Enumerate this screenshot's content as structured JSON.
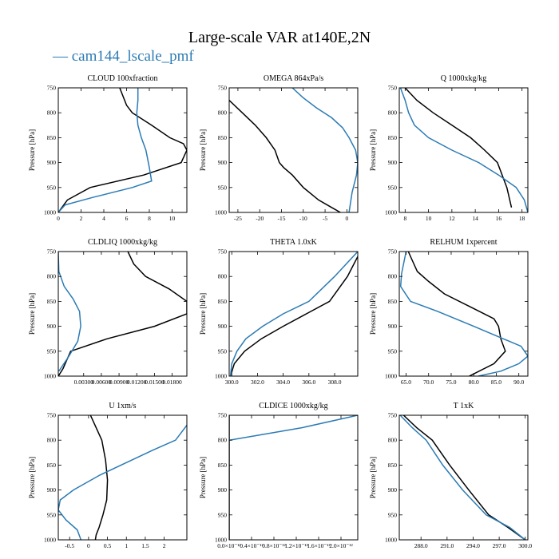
{
  "figure": {
    "title": "Large-scale VAR at140E,2N",
    "legend_label": "— cam144_lscale_pmf"
  },
  "colors": {
    "black_series": "#000000",
    "blue_series": "#2b7bb4"
  },
  "chart_data": [
    {
      "type": "line",
      "title": "CLOUD 100xfraction",
      "ylabel": "Pressure [hPa]",
      "xlim": [
        0,
        11.3
      ],
      "ylim": [
        1000,
        750
      ],
      "xticks": [
        0,
        2,
        4,
        6,
        8,
        10
      ],
      "xticklabels": [
        "0",
        "2",
        "4",
        "6",
        "8",
        "10"
      ],
      "yticks": [
        750,
        800,
        850,
        900,
        950,
        1000
      ],
      "yticklabels": [
        "750",
        "800",
        "850",
        "900",
        "950",
        "1000"
      ],
      "series": [
        {
          "color": "#000000",
          "x": [
            0,
            0.8,
            2.8,
            7.5,
            10.8,
            11.3,
            11.0,
            9.8,
            8.2,
            6.5,
            6.0,
            5.4
          ],
          "y": [
            1000,
            975,
            950,
            925,
            900,
            875,
            862,
            850,
            825,
            800,
            785,
            750
          ]
        },
        {
          "color": "#2b7bb4",
          "x": [
            0,
            0.6,
            3.0,
            6.5,
            8.2,
            8.0,
            7.7,
            7.3,
            7.0,
            6.9,
            7.0,
            7.0
          ],
          "y": [
            1000,
            985,
            970,
            950,
            937,
            910,
            875,
            850,
            825,
            800,
            775,
            750
          ]
        }
      ]
    },
    {
      "type": "line",
      "title": "OMEGA 864xPa/s",
      "ylabel": "Pressure [hPa]",
      "xlim": [
        -27,
        2.5
      ],
      "ylim": [
        1000,
        750
      ],
      "xticks": [
        -25,
        -20,
        -15,
        -10,
        -5,
        0
      ],
      "xticklabels": [
        "-25",
        "-20",
        "-15",
        "-10",
        "-5",
        "0"
      ],
      "yticks": [
        750,
        800,
        850,
        900,
        950,
        1000
      ],
      "yticklabels": [
        "750",
        "800",
        "850",
        "900",
        "950",
        "1000"
      ],
      "series": [
        {
          "color": "#000000",
          "x": [
            -27,
            -24,
            -21,
            -18.5,
            -16.5,
            -15.5,
            -14.5,
            -12.5,
            -10,
            -6.5,
            -3.5,
            -1.5
          ],
          "y": [
            775,
            800,
            825,
            850,
            875,
            900,
            910,
            925,
            950,
            975,
            990,
            1000
          ]
        },
        {
          "color": "#2b7bb4",
          "x": [
            -12.5,
            -10,
            -7,
            -3.5,
            -1,
            0.5,
            2,
            2.5,
            2.2,
            1.2,
            0.5
          ],
          "y": [
            750,
            770,
            790,
            810,
            830,
            850,
            875,
            900,
            925,
            960,
            1000
          ]
        }
      ]
    },
    {
      "type": "line",
      "title": "Q 1000xkg/kg",
      "ylabel": "Pressure [hPa]",
      "xlim": [
        7.5,
        18.5
      ],
      "ylim": [
        1000,
        750
      ],
      "xticks": [
        8,
        10,
        12,
        14,
        16,
        18
      ],
      "xticklabels": [
        "8",
        "10",
        "12",
        "14",
        "16",
        "18"
      ],
      "yticks": [
        750,
        800,
        850,
        900,
        950,
        1000
      ],
      "yticklabels": [
        "750",
        "800",
        "850",
        "900",
        "950",
        "1000"
      ],
      "series": [
        {
          "color": "#000000",
          "x": [
            8.0,
            9.0,
            10.4,
            12.0,
            13.6,
            14.8,
            15.9,
            16.7,
            17.1
          ],
          "y": [
            750,
            775,
            800,
            825,
            850,
            875,
            900,
            950,
            990
          ]
        },
        {
          "color": "#2b7bb4",
          "x": [
            7.6,
            8.0,
            8.3,
            8.8,
            10.0,
            12.0,
            14.3,
            16.0,
            17.5,
            18.2,
            18.5
          ],
          "y": [
            750,
            775,
            800,
            825,
            850,
            875,
            900,
            925,
            950,
            975,
            1000
          ]
        }
      ]
    },
    {
      "type": "line",
      "title": "CLDLIQ 1000xkg/kg",
      "ylabel": "Pressure [hPa]",
      "xlim": [
        -0.0013,
        0.0205
      ],
      "ylim": [
        1000,
        750
      ],
      "xticks": [
        0.003,
        0.006,
        0.009,
        0.012,
        0.015,
        0.018
      ],
      "xticklabels": [
        "0.00300",
        "0.00600",
        "0.00900",
        "0.01200",
        "0.01500",
        "0.01800"
      ],
      "yticks": [
        750,
        800,
        850,
        900,
        950,
        1000
      ],
      "yticklabels": [
        "750",
        "800",
        "850",
        "900",
        "950",
        "1000"
      ],
      "series": [
        {
          "color": "#000000",
          "x": [
            -0.0013,
            -0.0005,
            0.0008,
            0.007,
            0.015,
            0.0205,
            0.0205,
            0.0175,
            0.0135,
            0.0115,
            0.0105
          ],
          "y": [
            1000,
            985,
            950,
            925,
            900,
            875,
            850,
            825,
            800,
            775,
            750
          ]
        },
        {
          "color": "#2b7bb4",
          "x": [
            -0.0012,
            0.0005,
            0.002,
            0.0025,
            0.0023,
            0.0012,
            -0.0003,
            -0.0012,
            -0.0013
          ],
          "y": [
            990,
            960,
            930,
            900,
            870,
            845,
            820,
            790,
            750
          ]
        }
      ]
    },
    {
      "type": "line",
      "title": "THETA 1.0xK",
      "ylabel": "Pressure [hPa]",
      "xlim": [
        299.8,
        309.8
      ],
      "ylim": [
        1000,
        750
      ],
      "xticks": [
        300.0,
        302.0,
        304.0,
        306.0,
        308.0
      ],
      "xticklabels": [
        "300.0",
        "302.0",
        "304.0",
        "306.0",
        "308.0"
      ],
      "yticks": [
        750,
        800,
        850,
        900,
        950,
        1000
      ],
      "yticklabels": [
        "750",
        "800",
        "850",
        "900",
        "950",
        "1000"
      ],
      "series": [
        {
          "color": "#000000",
          "x": [
            299.9,
            300.2,
            301.0,
            302.3,
            304.0,
            305.8,
            307.6,
            309.0,
            309.8
          ],
          "y": [
            1000,
            975,
            950,
            925,
            900,
            875,
            850,
            800,
            760
          ]
        },
        {
          "color": "#2b7bb4",
          "x": [
            299.9,
            300.0,
            300.4,
            301.1,
            302.4,
            304.0,
            306.0,
            308.0,
            309.8
          ],
          "y": [
            1000,
            975,
            950,
            925,
            900,
            875,
            850,
            800,
            750
          ]
        }
      ]
    },
    {
      "type": "line",
      "title": "RELHUM 1xpercent",
      "ylabel": "Pressure [hPa]",
      "xlim": [
        63.5,
        92
      ],
      "ylim": [
        1000,
        750
      ],
      "xticks": [
        65.0,
        70.0,
        75.0,
        80.0,
        85.0,
        90.0
      ],
      "xticklabels": [
        "65.0",
        "70.0",
        "75.0",
        "80.0",
        "85.0",
        "90.0"
      ],
      "yticks": [
        750,
        800,
        850,
        900,
        950,
        1000
      ],
      "yticklabels": [
        "750",
        "800",
        "850",
        "900",
        "950",
        "1000"
      ],
      "series": [
        {
          "color": "#000000",
          "x": [
            79.0,
            84.5,
            87.0,
            86.0,
            85.5,
            84.5,
            79.0,
            73.5,
            70.0,
            67.5,
            66.5,
            65.5
          ],
          "y": [
            1000,
            975,
            950,
            925,
            900,
            885,
            860,
            835,
            810,
            790,
            770,
            750
          ]
        },
        {
          "color": "#2b7bb4",
          "x": [
            81.0,
            86.0,
            90.0,
            92.0,
            90.5,
            80.0,
            72.0,
            66.0,
            63.8,
            64.0,
            65.0
          ],
          "y": [
            1000,
            990,
            975,
            960,
            940,
            900,
            870,
            850,
            820,
            795,
            750
          ]
        }
      ]
    },
    {
      "type": "line",
      "title": "U 1xm/s",
      "ylabel": "Pressure [hPa]",
      "xlim": [
        -0.8,
        2.6
      ],
      "ylim": [
        1000,
        750
      ],
      "xticks": [
        -0.5,
        0.0,
        0.5,
        1.0,
        1.5,
        2.0
      ],
      "xticklabels": [
        "-0.5",
        "0",
        "0.5",
        "1",
        "1.5",
        "2"
      ],
      "yticks": [
        750,
        800,
        850,
        900,
        950,
        1000
      ],
      "yticklabels": [
        "750",
        "800",
        "850",
        "900",
        "950",
        "1000"
      ],
      "series": [
        {
          "color": "#000000",
          "x": [
            0.05,
            0.2,
            0.35,
            0.45,
            0.5,
            0.48,
            0.38,
            0.28,
            0.2,
            0.18
          ],
          "y": [
            750,
            775,
            800,
            840,
            880,
            920,
            950,
            975,
            990,
            1000
          ]
        },
        {
          "color": "#2b7bb4",
          "x": [
            2.6,
            2.3,
            1.7,
            1.0,
            0.3,
            -0.4,
            -0.75,
            -0.8,
            -0.6,
            -0.3,
            -0.2
          ],
          "y": [
            770,
            800,
            820,
            845,
            870,
            900,
            920,
            940,
            960,
            980,
            1000
          ]
        }
      ]
    },
    {
      "type": "line",
      "title": "CLDICE 1000xkg/kg",
      "ylabel": "Pressure [hPa]",
      "xlim": [
        0,
        2.3e-12
      ],
      "ylim": [
        1000,
        750
      ],
      "xticks": [
        0,
        4e-13,
        8e-13,
        1.2e-12,
        1.6e-12,
        2e-12
      ],
      "xticklabels": [
        "0.0×10⁻¹²",
        "0.4×10⁻¹²",
        "0.8×10⁻¹²",
        "1.2×10⁻¹²",
        "1.6×10⁻¹²",
        "2.0×10⁻¹²"
      ],
      "yticks": [
        750,
        800,
        850,
        900,
        950,
        1000
      ],
      "yticklabels": [
        "750",
        "800",
        "850",
        "900",
        "950",
        "1000"
      ],
      "series": [
        {
          "color": "#000000",
          "x": [
            0,
            0
          ],
          "y": [
            750,
            1000
          ]
        },
        {
          "color": "#2b7bb4",
          "x": [
            0,
            1.3e-12,
            2.1e-12,
            2.3e-12
          ],
          "y": [
            800,
            775,
            755,
            750
          ]
        }
      ]
    },
    {
      "type": "line",
      "title": "T 1xK",
      "ylabel": "Pressure [hPa]",
      "xlim": [
        285.5,
        300.3
      ],
      "ylim": [
        1000,
        750
      ],
      "xticks": [
        288.0,
        291.0,
        294.0,
        297.0,
        300.0
      ],
      "xticklabels": [
        "288.0",
        "291.0",
        "294.0",
        "297.0",
        "300.0"
      ],
      "yticks": [
        750,
        800,
        850,
        900,
        950,
        1000
      ],
      "yticklabels": [
        "750",
        "800",
        "850",
        "900",
        "950",
        "1000"
      ],
      "series": [
        {
          "color": "#000000",
          "x": [
            286.0,
            287.5,
            289.3,
            291.3,
            293.5,
            295.8,
            298.0,
            300.0
          ],
          "y": [
            750,
            775,
            800,
            850,
            900,
            950,
            975,
            1000
          ]
        },
        {
          "color": "#2b7bb4",
          "x": [
            285.6,
            287.0,
            288.6,
            290.5,
            292.8,
            295.5,
            298.2,
            300.0
          ],
          "y": [
            750,
            775,
            800,
            850,
            900,
            950,
            975,
            1000
          ]
        }
      ]
    }
  ]
}
